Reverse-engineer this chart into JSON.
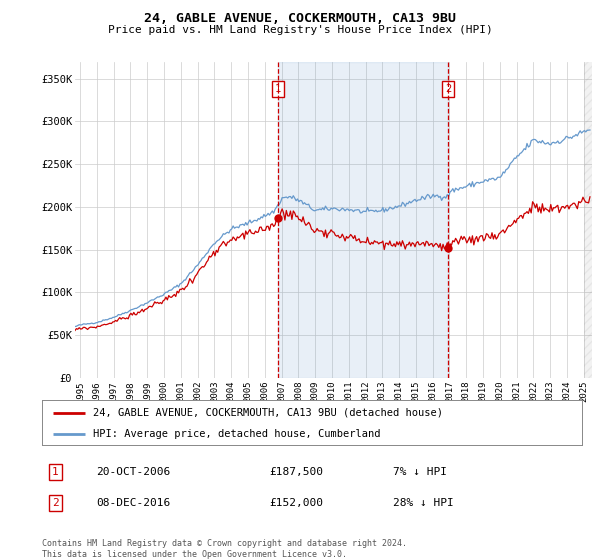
{
  "title": "24, GABLE AVENUE, COCKERMOUTH, CA13 9BU",
  "subtitle": "Price paid vs. HM Land Registry's House Price Index (HPI)",
  "ylabel_ticks": [
    "£0",
    "£50K",
    "£100K",
    "£150K",
    "£200K",
    "£250K",
    "£300K",
    "£350K"
  ],
  "ytick_values": [
    0,
    50000,
    100000,
    150000,
    200000,
    250000,
    300000,
    350000
  ],
  "ylim": [
    0,
    370000
  ],
  "xlim_start": 1994.7,
  "xlim_end": 2025.5,
  "xtick_years": [
    1995,
    1996,
    1997,
    1998,
    1999,
    2000,
    2001,
    2002,
    2003,
    2004,
    2005,
    2006,
    2007,
    2008,
    2009,
    2010,
    2011,
    2012,
    2013,
    2014,
    2015,
    2016,
    2017,
    2018,
    2019,
    2020,
    2021,
    2022,
    2023,
    2024,
    2025
  ],
  "sale1_x": 2006.8,
  "sale1_y": 187500,
  "sale2_x": 2016.92,
  "sale2_y": 152000,
  "vline1_x": 2006.8,
  "vline2_x": 2016.92,
  "legend1": "24, GABLE AVENUE, COCKERMOUTH, CA13 9BU (detached house)",
  "legend2": "HPI: Average price, detached house, Cumberland",
  "note1_num": "1",
  "note1_date": "20-OCT-2006",
  "note1_price": "£187,500",
  "note1_hpi": "7% ↓ HPI",
  "note2_num": "2",
  "note2_date": "08-DEC-2016",
  "note2_price": "£152,000",
  "note2_hpi": "28% ↓ HPI",
  "footer": "Contains HM Land Registry data © Crown copyright and database right 2024.\nThis data is licensed under the Open Government Licence v3.0.",
  "price_color": "#cc0000",
  "hpi_color": "#6699cc",
  "hpi_fill_color": "#ddeeff",
  "vline_color": "#cc0000",
  "grid_color": "#cccccc",
  "bg_color": "#ffffff"
}
